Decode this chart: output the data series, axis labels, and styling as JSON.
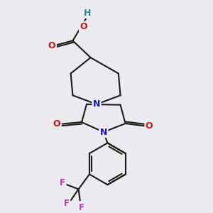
{
  "bg_color": "#ebebef",
  "bond_color": "#1a1a1a",
  "bond_width": 1.5,
  "atom_colors": {
    "N": "#1414cc",
    "O": "#cc1414",
    "F": "#bb33bb",
    "H": "#2a8a8a",
    "C": "#1a1a1a"
  }
}
